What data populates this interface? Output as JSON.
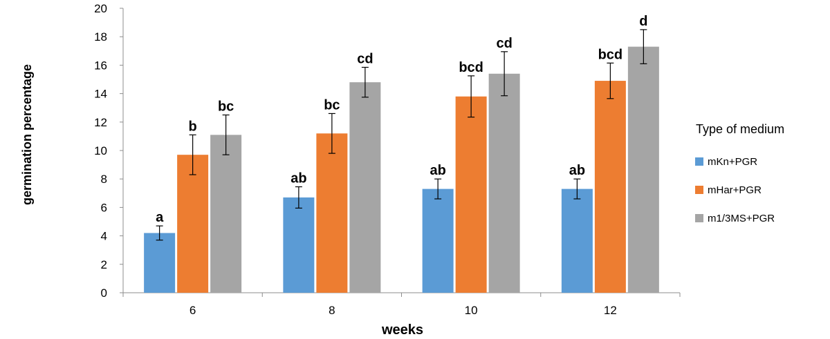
{
  "chart_data": {
    "type": "bar",
    "xlabel": "weeks",
    "ylabel": "germination percentage",
    "ylim": [
      0,
      20
    ],
    "yticks": [
      "0",
      "2",
      "4",
      "6",
      "8",
      "10",
      "12",
      "14",
      "16",
      "18",
      "20"
    ],
    "categories": [
      "6",
      "8",
      "10",
      "12"
    ],
    "legend_title": "Type of medium",
    "legend_position": "right",
    "grid": false,
    "series": [
      {
        "name": "mKn+PGR",
        "color": "#5B9BD5",
        "values": [
          4.2,
          6.7,
          7.3,
          7.3
        ],
        "errors": [
          0.5,
          0.75,
          0.7,
          0.7
        ],
        "labels": [
          "a",
          "ab",
          "ab",
          "ab"
        ]
      },
      {
        "name": "mHar+PGR",
        "color": "#ED7D31",
        "values": [
          9.7,
          11.2,
          13.8,
          14.9
        ],
        "errors": [
          1.4,
          1.4,
          1.45,
          1.25
        ],
        "labels": [
          "b",
          "bc",
          "bcd",
          "bcd"
        ]
      },
      {
        "name": "m1/3MS+PGR",
        "color": "#A5A5A5",
        "values": [
          11.1,
          14.8,
          15.4,
          17.3
        ],
        "errors": [
          1.4,
          1.05,
          1.55,
          1.2
        ],
        "labels": [
          "bc",
          "cd",
          "cd",
          "d"
        ]
      }
    ]
  }
}
